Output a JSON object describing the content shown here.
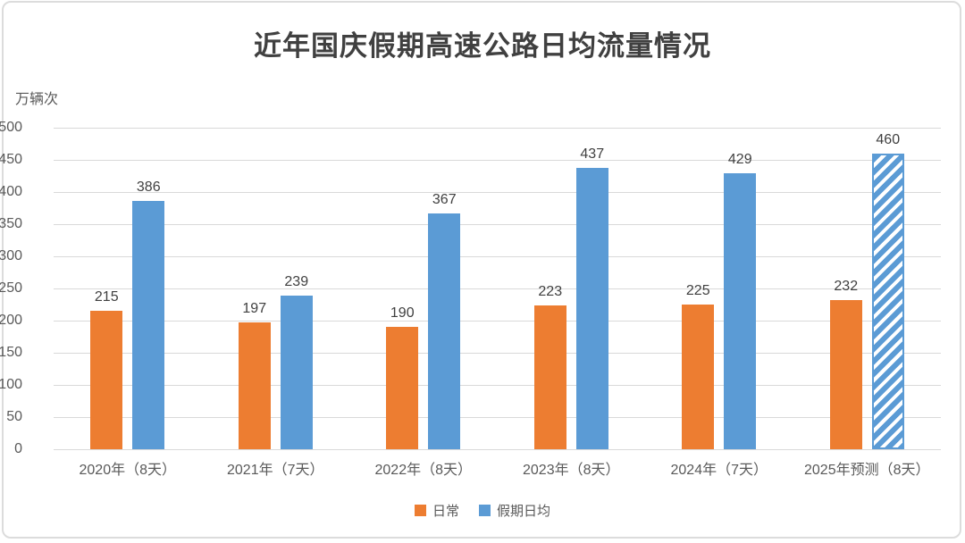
{
  "chart": {
    "title": "近年国庆假期高速公路日均流量情况",
    "unit_label": "万辆次"
  },
  "chart_data": {
    "type": "bar",
    "title": "近年国庆假期高速公路日均流量情况",
    "ylabel": "万辆次",
    "categories": [
      "2020年（8天）",
      "2021年（7天）",
      "2022年（8天）",
      "2023年（8天）",
      "2024年（7天）",
      "2025年预测（8天）"
    ],
    "series": [
      {
        "name": "日常",
        "color": "#ED7D31",
        "values": [
          215,
          197,
          190,
          223,
          225,
          232
        ]
      },
      {
        "name": "假期日均",
        "color": "#5B9BD5",
        "values": [
          386,
          239,
          367,
          437,
          429,
          460
        ],
        "hatched_indices": [
          5
        ]
      }
    ],
    "ylim": [
      0,
      500
    ],
    "ytick_interval": 50,
    "grid": true,
    "legend_position": "bottom",
    "gridline_color": "#D9D9D9",
    "label_color": "#404040",
    "axis_text_color": "#595959"
  }
}
